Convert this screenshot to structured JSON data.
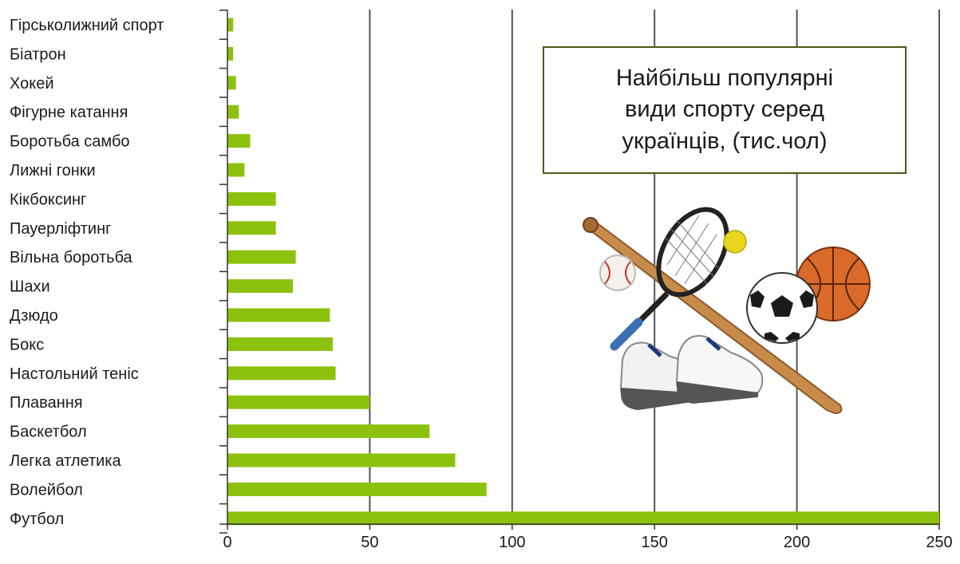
{
  "chart_data": {
    "type": "bar",
    "orientation": "horizontal",
    "title": "Найбільш популярні види спорту серед українців, (тис.чол)",
    "categories": [
      "Гірськолижний спорт",
      "Біатрон",
      "Хокей",
      "Фігурне катання",
      "Боротьба самбо",
      "Лижні гонки",
      "Кікбоксинг",
      "Пауерліфтинг",
      "Вільна боротьба",
      "Шахи",
      "Дзюдо",
      "Бокс",
      "Настольний теніс",
      "Плавання",
      "Баскетбол",
      "Легка атлетика",
      "Волейбол",
      "Футбол"
    ],
    "values": [
      2,
      2,
      3,
      4,
      8,
      6,
      17,
      17,
      24,
      23,
      36,
      37,
      38,
      50,
      71,
      80,
      91,
      250
    ],
    "xlim": [
      0,
      250
    ],
    "xticks": [
      0,
      50,
      100,
      150,
      200,
      250
    ],
    "xlabel": "",
    "ylabel": "",
    "grid": "vertical",
    "bar_color": "#8cc20e",
    "grid_color": "#555555"
  },
  "illustration": "sports-equipment-icon"
}
